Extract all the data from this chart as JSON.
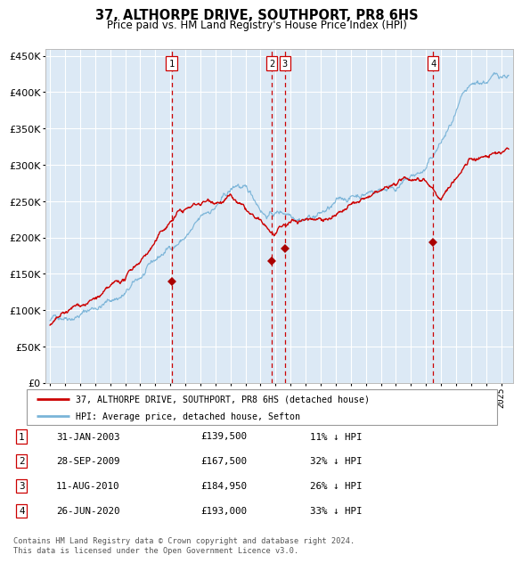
{
  "title": "37, ALTHORPE DRIVE, SOUTHPORT, PR8 6HS",
  "subtitle": "Price paid vs. HM Land Registry's House Price Index (HPI)",
  "background_color": "#dce9f5",
  "plot_bg_color": "#dce9f5",
  "grid_color": "#ffffff",
  "hpi_color": "#7ab4d8",
  "price_color": "#cc0000",
  "sale_marker_color": "#aa0000",
  "vline_color": "#cc0000",
  "sales": [
    {
      "label": "1",
      "date_num": 2003.08,
      "price": 139500
    },
    {
      "label": "2",
      "date_num": 2009.74,
      "price": 167500
    },
    {
      "label": "3",
      "date_num": 2010.61,
      "price": 184950
    },
    {
      "label": "4",
      "date_num": 2020.49,
      "price": 193000
    }
  ],
  "legend_house_label": "37, ALTHORPE DRIVE, SOUTHPORT, PR8 6HS (detached house)",
  "legend_hpi_label": "HPI: Average price, detached house, Sefton",
  "table_rows": [
    [
      "1",
      "31-JAN-2003",
      "£139,500",
      "11% ↓ HPI"
    ],
    [
      "2",
      "28-SEP-2009",
      "£167,500",
      "32% ↓ HPI"
    ],
    [
      "3",
      "11-AUG-2010",
      "£184,950",
      "26% ↓ HPI"
    ],
    [
      "4",
      "26-JUN-2020",
      "£193,000",
      "33% ↓ HPI"
    ]
  ],
  "footer": "Contains HM Land Registry data © Crown copyright and database right 2024.\nThis data is licensed under the Open Government Licence v3.0.",
  "ylim": [
    0,
    460000
  ],
  "yticks": [
    0,
    50000,
    100000,
    150000,
    200000,
    250000,
    300000,
    350000,
    400000,
    450000
  ],
  "xlim_start": 1994.7,
  "xlim_end": 2025.8
}
